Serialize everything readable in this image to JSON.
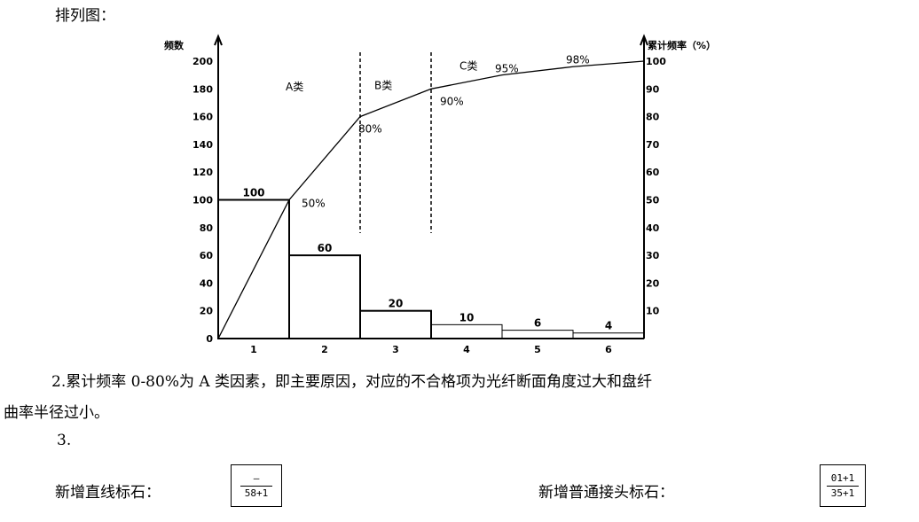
{
  "doc": {
    "heading": "排列图：",
    "para1_line1": "2.累计频率 0-80%为 A 类因素，即主要原因，对应的不合格项为光纤断面角度过大和盘纤",
    "para1_line2": "曲率半径过小。",
    "item3": "3.",
    "line_stone_label": "新增直线标石：",
    "line_stone_top": "—",
    "line_stone_bottom": "58+1",
    "joint_stone_label": "新增普通接头标石：",
    "joint_stone_top": "01+1",
    "joint_stone_bottom": "35+1"
  },
  "chart_data": {
    "type": "bar",
    "categories": [
      "1",
      "2",
      "3",
      "4",
      "5",
      "6"
    ],
    "values": [
      100,
      60,
      20,
      10,
      6,
      4
    ],
    "bar_labels": [
      "100",
      "60",
      "20",
      "10",
      "6",
      "4"
    ],
    "cumulative_line": {
      "type": "line",
      "x_boundaries": [
        0,
        1,
        2,
        3,
        4,
        5,
        6
      ],
      "cumulative_percent": [
        0,
        50,
        80,
        90,
        95,
        98,
        100
      ],
      "labels": [
        "50%",
        "80%",
        "90%",
        "95%",
        "98%"
      ]
    },
    "ylabel_left": "频数",
    "ylabel_right": "累计频率（%）",
    "ylim_left": [
      0,
      200
    ],
    "ylim_right": [
      0,
      100
    ],
    "yticks_left": [
      "0",
      "20",
      "40",
      "60",
      "80",
      "100",
      "120",
      "140",
      "160",
      "180",
      "200"
    ],
    "yticks_right": [
      "10",
      "20",
      "30",
      "40",
      "50",
      "60",
      "70",
      "80",
      "90",
      "100"
    ],
    "zones": [
      {
        "label": "A类",
        "start_index": 0
      },
      {
        "label": "B类",
        "start_index": 2
      },
      {
        "label": "C类",
        "start_index": 3
      }
    ]
  }
}
